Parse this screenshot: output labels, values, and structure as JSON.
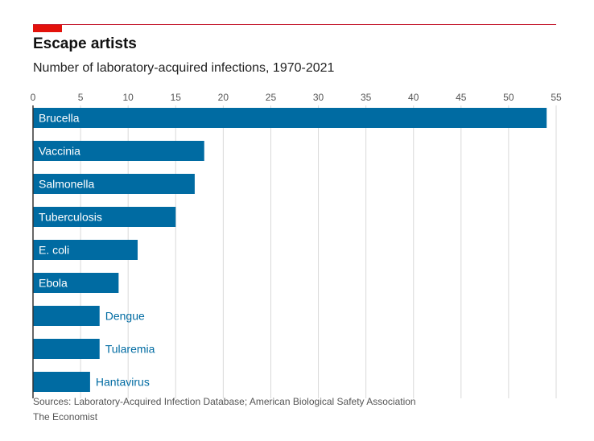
{
  "header": {
    "title": "Escape artists",
    "subtitle": "Number of laboratory-acquired infections, 1970-2021"
  },
  "footer": {
    "source": "Sources: Laboratory-Acquired Infection Database; American Biological Safety Association",
    "brand": "The Economist"
  },
  "colors": {
    "accent": "#e3120b",
    "bar": "#006ba2",
    "grid": "#d9d9d9",
    "axis": "#333333"
  },
  "chart_data": {
    "type": "bar",
    "orientation": "horizontal",
    "categories": [
      "Brucella",
      "Vaccinia",
      "Salmonella",
      "Tuberculosis",
      "E. coli",
      "Ebola",
      "Dengue",
      "Tularemia",
      "Hantavirus"
    ],
    "values": [
      54,
      18,
      17,
      15,
      11,
      9,
      7,
      7,
      6
    ],
    "xlim": [
      0,
      55
    ],
    "xticks": [
      0,
      5,
      10,
      15,
      20,
      25,
      30,
      35,
      40,
      45,
      50,
      55
    ],
    "grid": true,
    "tick_position": "top"
  }
}
